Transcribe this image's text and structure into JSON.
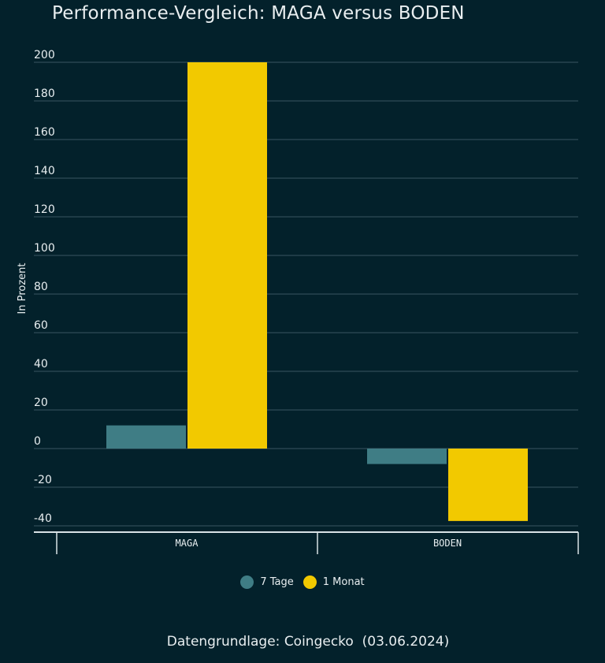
{
  "chart_data": {
    "type": "bar",
    "title": "Performance-Vergleich: MAGA versus BODEN",
    "categories": [
      "MAGA",
      "BODEN"
    ],
    "series": [
      {
        "name": "7 Tage",
        "values": [
          12,
          -8
        ],
        "color": "#3f7d85"
      },
      {
        "name": "1 Monat",
        "values": [
          200,
          -37.5
        ],
        "color": "#f2c900"
      }
    ],
    "xlabel": "",
    "ylabel": "In Prozent",
    "ylim": [
      -40,
      200
    ],
    "yticks": [
      -40,
      -20,
      0,
      20,
      40,
      60,
      80,
      100,
      120,
      140,
      160,
      180,
      200
    ],
    "grid": true,
    "legend_position": "bottom-center",
    "source": "Datengrundlage: Coingecko  (03.06.2024)"
  },
  "colors": {
    "background": "#03212b",
    "text": "#e8eef0",
    "grid": "#3a5560",
    "axis": "#d9e2e6"
  }
}
